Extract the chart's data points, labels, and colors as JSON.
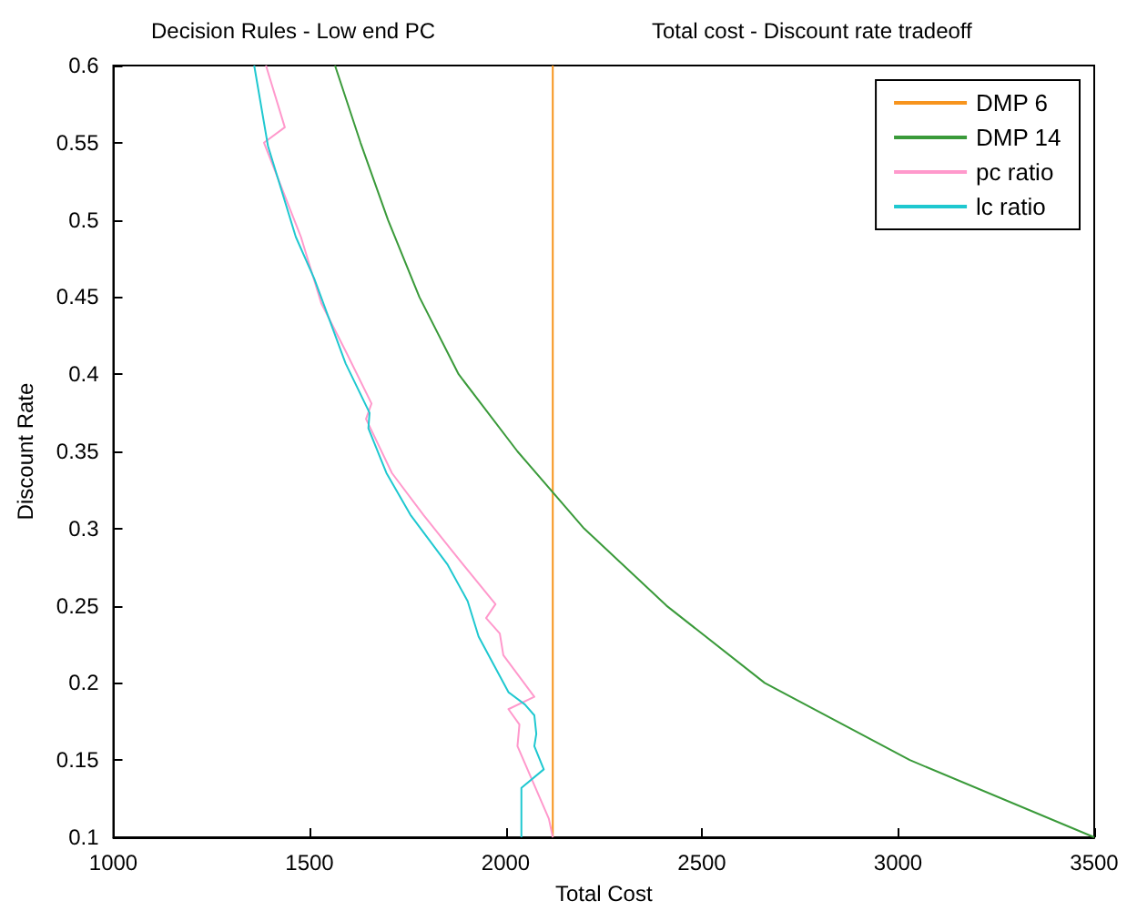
{
  "chart_data": {
    "type": "line",
    "title": "Decision Rules - Low end PC",
    "subtitle": "Total cost - Discount rate tradeoff",
    "xlabel": "Total Cost",
    "ylabel": "Discount Rate",
    "xlim": [
      1000,
      3500
    ],
    "xticks": [
      1000,
      1500,
      2000,
      2500,
      3000,
      3500
    ],
    "ylim": [
      0.1,
      0.6
    ],
    "yticks": [
      0.1,
      0.15,
      0.2,
      0.25,
      0.3,
      0.35,
      0.4,
      0.45,
      0.5,
      0.55,
      0.6
    ],
    "grid": false,
    "legend": "top right",
    "marker": "none",
    "line_style": "solid",
    "series": [
      {
        "name": "DMP 6",
        "color": "#f7941d",
        "x": [
          2120,
          2120
        ],
        "values": [
          0.1,
          0.6
        ]
      },
      {
        "name": "DMP 14",
        "color": "#3a9a3a",
        "x": [
          1565,
          1630,
          1700,
          1780,
          1880,
          2030,
          2200,
          2410,
          2660,
          3030,
          3500
        ],
        "values": [
          0.6,
          0.55,
          0.5,
          0.45,
          0.4,
          0.35,
          0.3,
          0.25,
          0.2,
          0.15,
          0.1
        ]
      },
      {
        "name": "pc ratio",
        "color": "#ff99cc",
        "x": [
          1389,
          1437,
          1384,
          1478,
          1530,
          1592,
          1658,
          1644,
          1710,
          1790,
          1865,
          1974,
          1950,
          1985,
          1994,
          2073,
          2007,
          2035,
          2030,
          2110,
          2120
        ],
        "values": [
          0.6,
          0.56,
          0.55,
          0.489,
          0.446,
          0.415,
          0.381,
          0.371,
          0.336,
          0.309,
          0.285,
          0.251,
          0.242,
          0.232,
          0.218,
          0.191,
          0.183,
          0.173,
          0.159,
          0.112,
          0.1
        ]
      },
      {
        "name": "lc ratio",
        "color": "#1fc8d0",
        "x": [
          1359,
          1394,
          1465,
          1512,
          1592,
          1653,
          1650,
          1696,
          1757,
          1851,
          1903,
          1931,
          2007,
          2049,
          2073,
          2078,
          2073,
          2097,
          2040,
          2040
        ],
        "values": [
          0.6,
          0.548,
          0.489,
          0.462,
          0.407,
          0.375,
          0.365,
          0.336,
          0.309,
          0.277,
          0.253,
          0.23,
          0.194,
          0.186,
          0.179,
          0.167,
          0.159,
          0.144,
          0.132,
          0.1
        ]
      }
    ]
  }
}
